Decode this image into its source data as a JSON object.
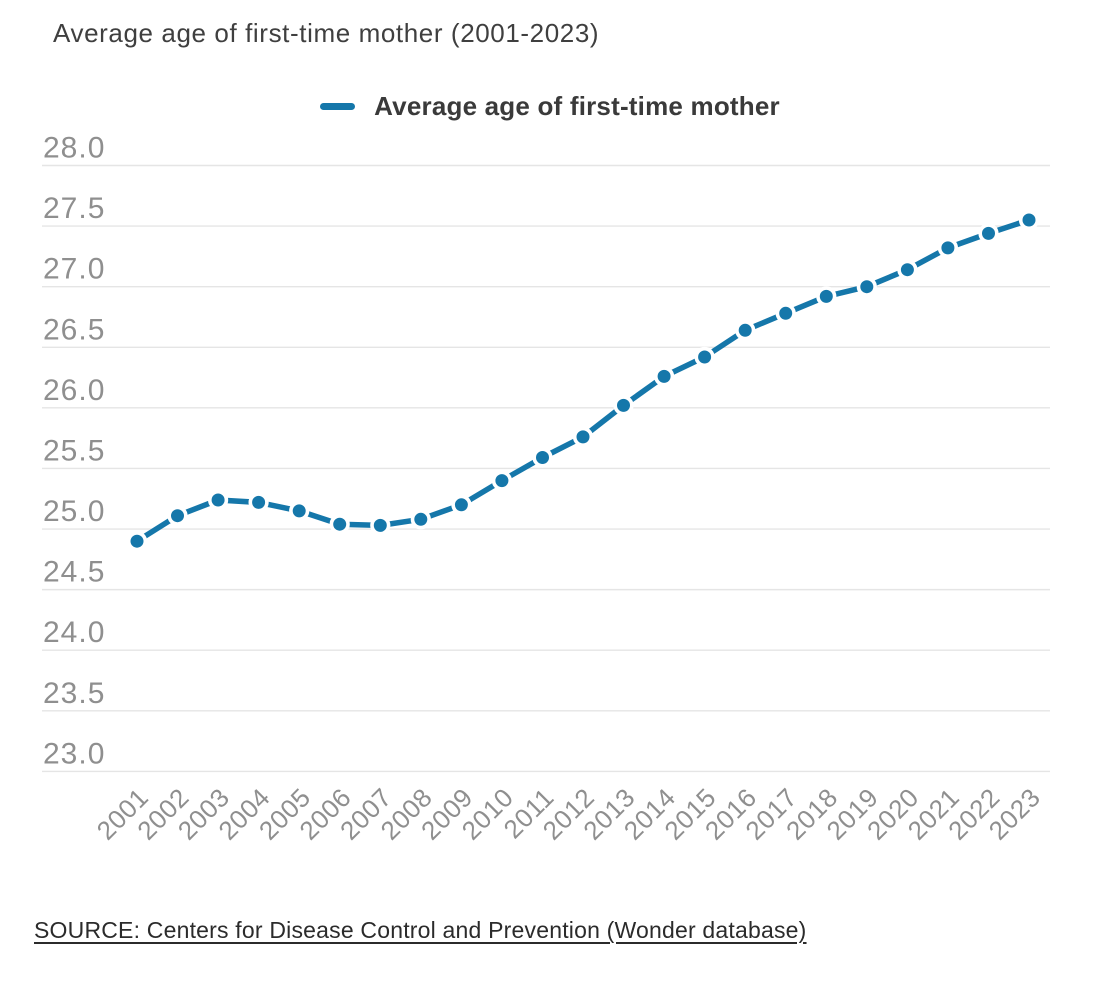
{
  "title": "Average age of first-time mother (2001-2023)",
  "legend": {
    "label": "Average age of first-time mother"
  },
  "source": {
    "text": "SOURCE: Centers for Disease Control and Prevention (Wonder database)"
  },
  "colors": {
    "line": "#1577aa",
    "marker": "#1577aa",
    "title_text": "#3f3f3f",
    "legend_text": "#3a3a3a",
    "tick_text": "#8f8f8f",
    "grid": "#e5e5e5",
    "source_text": "#2b2b2b",
    "background": "#ffffff"
  },
  "chart_data": {
    "type": "line",
    "title": "Average age of first-time mother (2001-2023)",
    "xlabel": "",
    "ylabel": "",
    "x": [
      2001,
      2002,
      2003,
      2004,
      2005,
      2006,
      2007,
      2008,
      2009,
      2010,
      2011,
      2012,
      2013,
      2014,
      2015,
      2016,
      2017,
      2018,
      2019,
      2020,
      2021,
      2022,
      2023
    ],
    "series": [
      {
        "name": "Average age of first-time mother",
        "values": [
          24.9,
          25.11,
          25.24,
          25.22,
          25.15,
          25.04,
          25.03,
          25.08,
          25.2,
          25.4,
          25.59,
          25.76,
          26.02,
          26.26,
          26.42,
          26.64,
          26.78,
          26.92,
          27.0,
          27.14,
          27.32,
          27.44,
          27.55
        ]
      }
    ],
    "ylim": [
      23.0,
      28.0
    ],
    "yticks": [
      "28.0",
      "27.5",
      "27.0",
      "26.5",
      "26.0",
      "25.5",
      "25.0",
      "24.5",
      "24.0",
      "23.5",
      "23.0"
    ],
    "xtick_rotation_deg": -45,
    "grid": true,
    "legend_position": "top-center",
    "marker": "circle",
    "line_dash_effect": "solid line with white halo around markers"
  }
}
